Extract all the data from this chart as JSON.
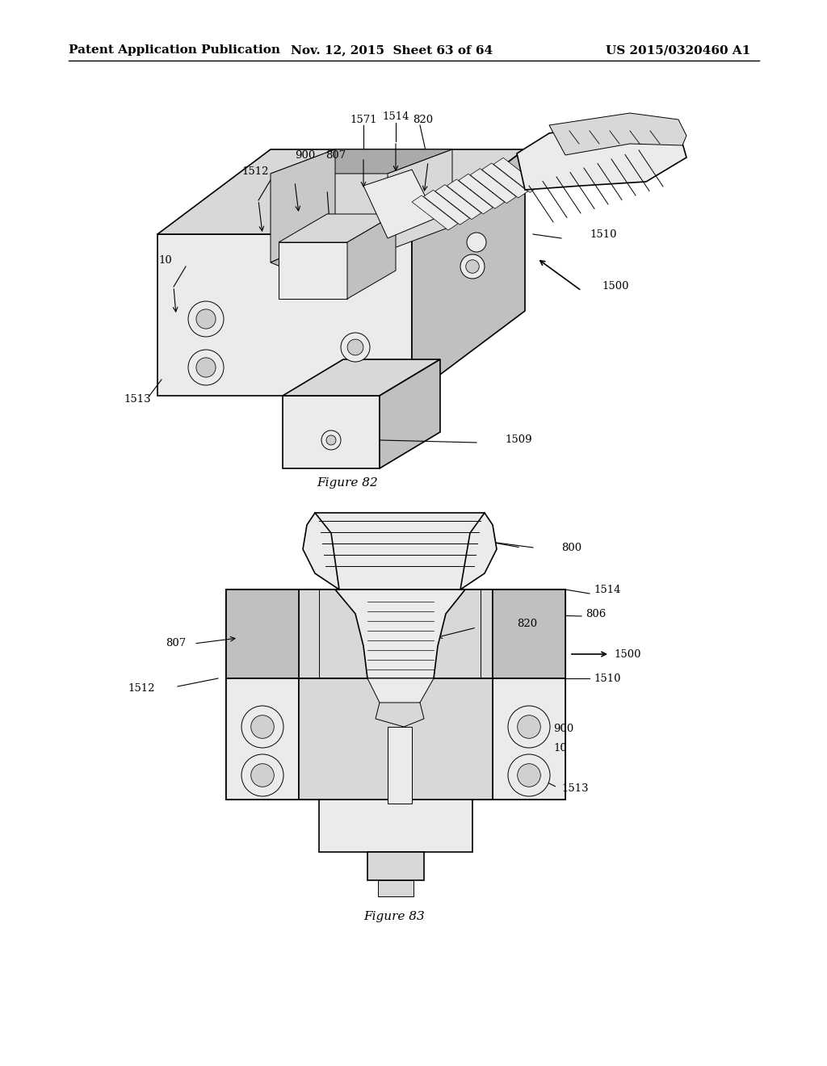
{
  "background_color": "#ffffff",
  "header_left": "Patent Application Publication",
  "header_center": "Nov. 12, 2015  Sheet 63 of 64",
  "header_right": "US 2015/0320460 A1",
  "header_fontsize": 11,
  "figure82_caption": "Figure 82",
  "figure83_caption": "Figure 83",
  "line_color": "#000000",
  "light_gray": "#e8e8e8",
  "mid_gray": "#d0d0d0",
  "dark_gray": "#b0b0b0"
}
